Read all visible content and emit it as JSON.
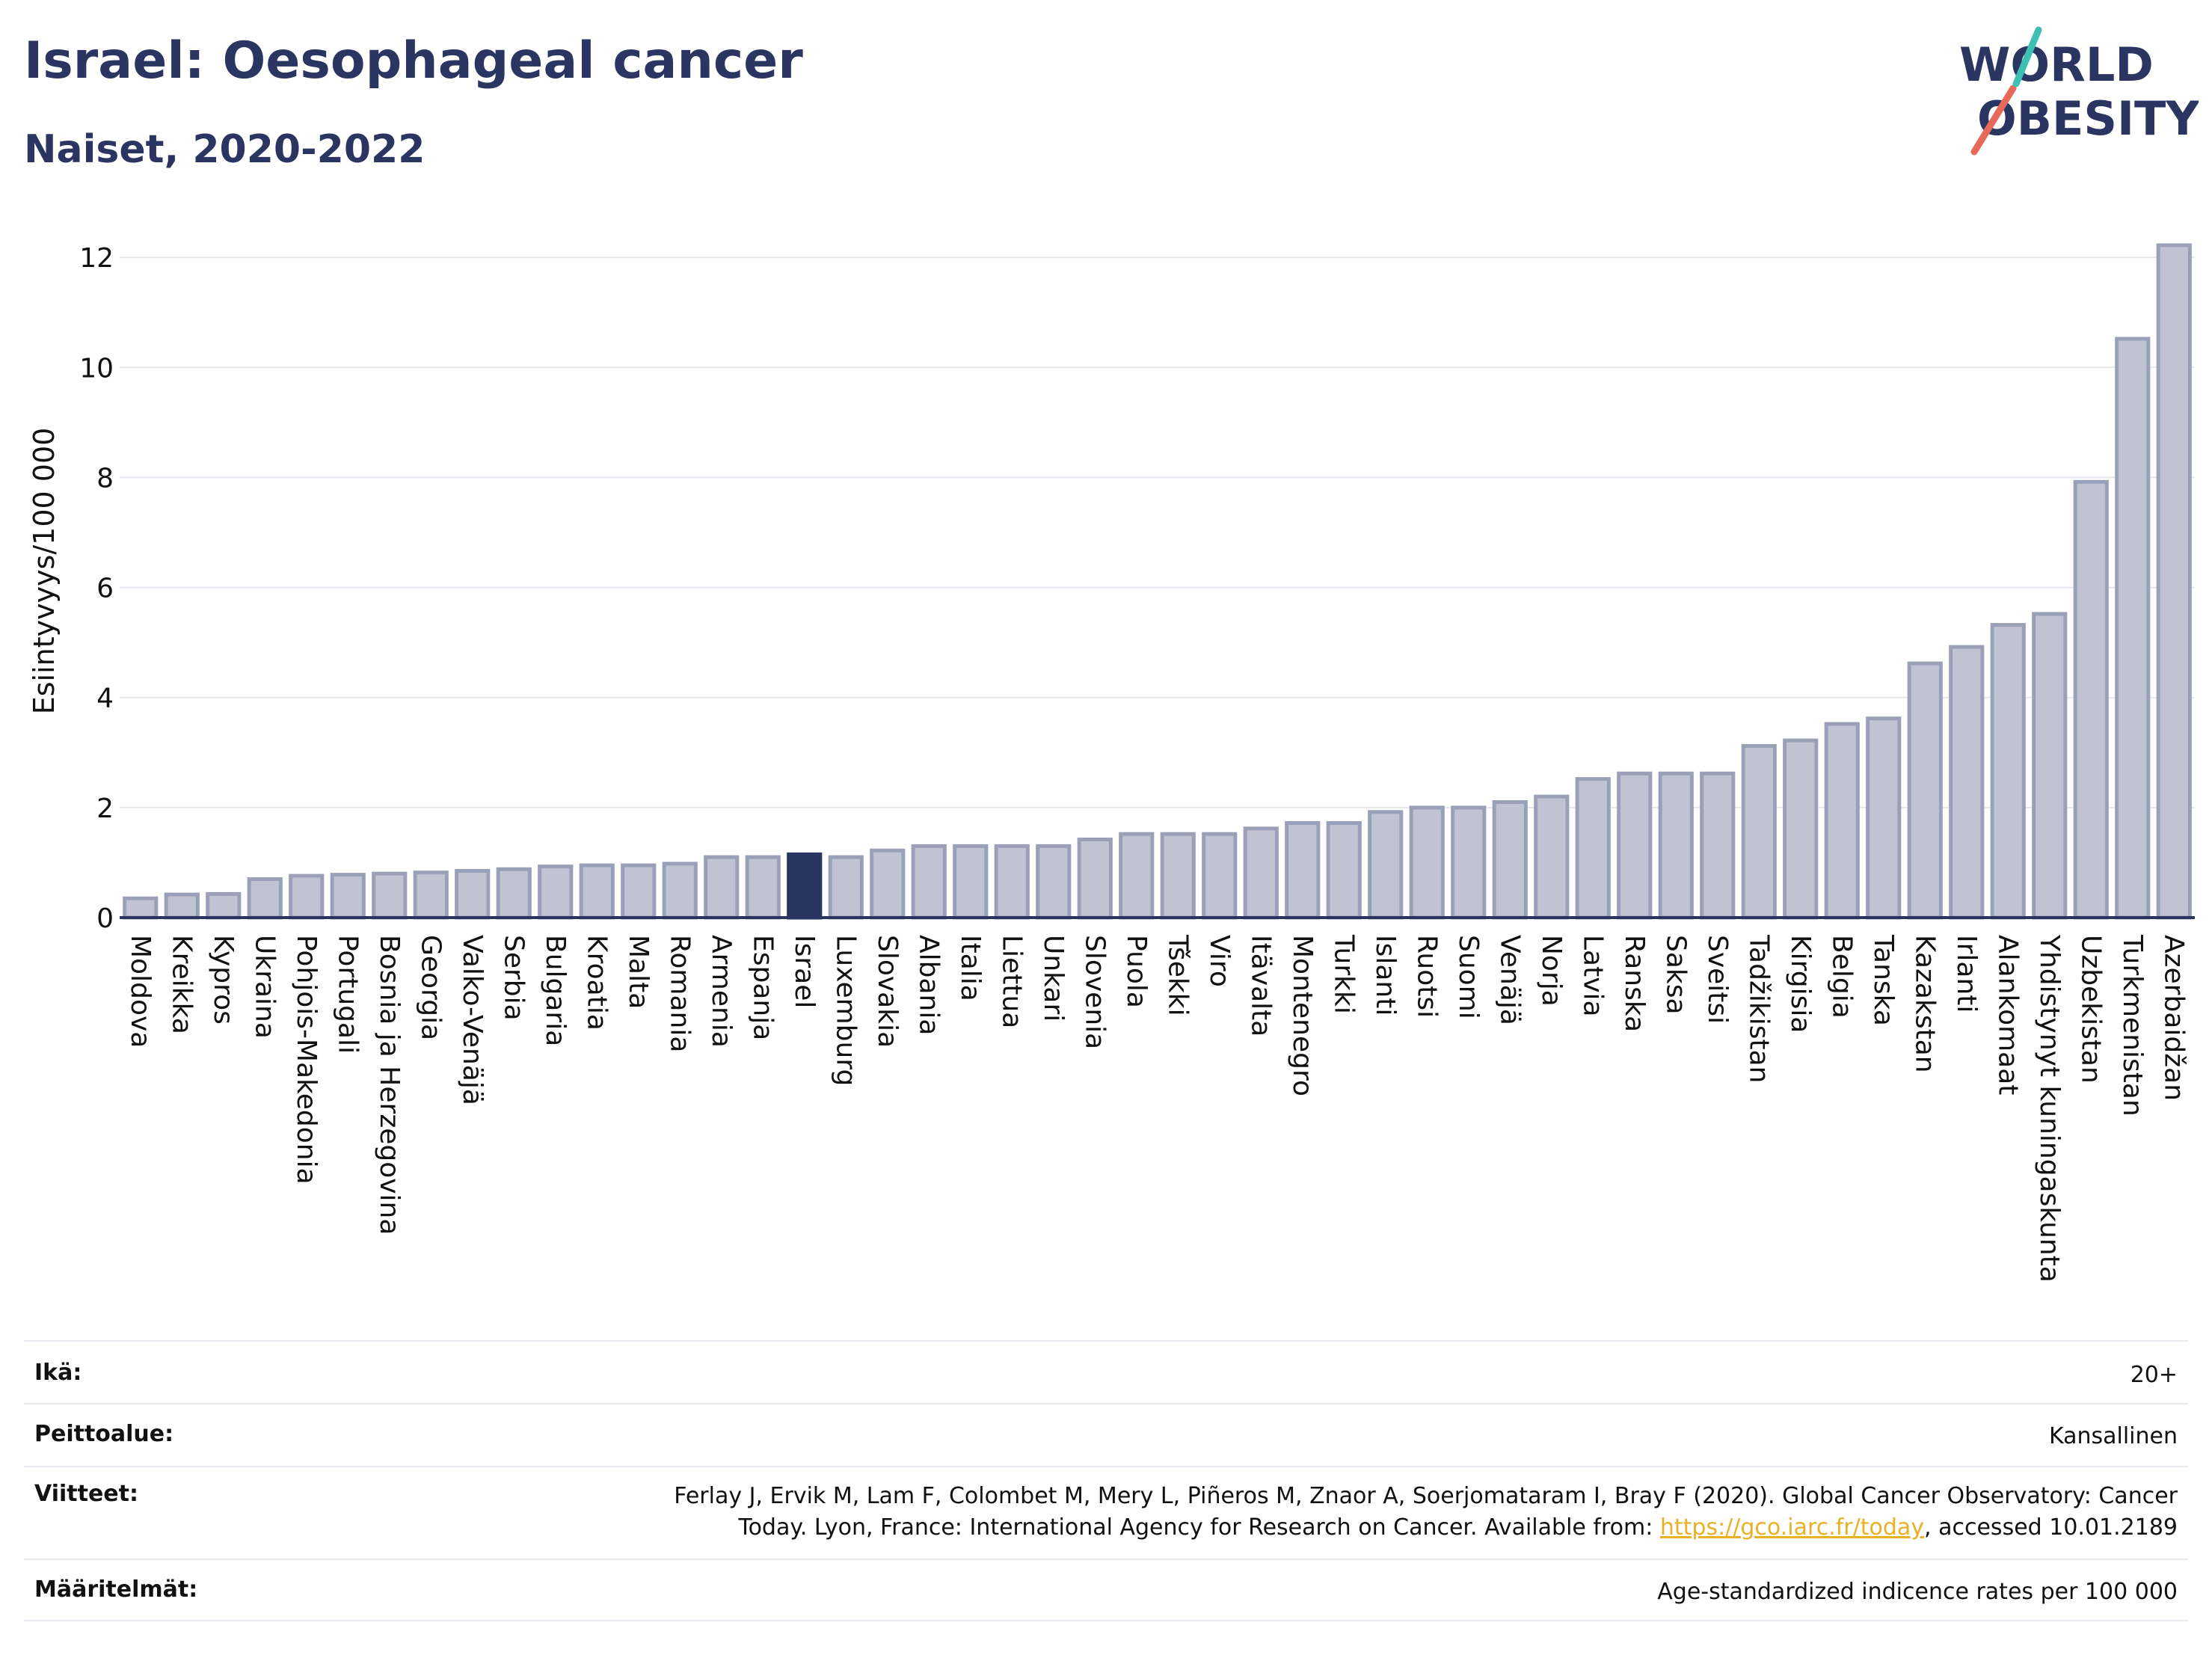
{
  "header": {
    "title": "Israel: Oesophageal cancer",
    "subtitle": "Naiset, 2020-2022"
  },
  "logo": {
    "line1": "WORLD",
    "line2": "OBESITY",
    "text_color": "#2a3561",
    "slash_colors": [
      "#e8685a",
      "#3dbfb4"
    ]
  },
  "colors": {
    "bar_fill": "#c0c4d2",
    "bar_stroke": "#9aa0b8",
    "highlight_fill": "#2a3561",
    "grid": "#e6e7ee",
    "axis": "#2a3561"
  },
  "chart_data": {
    "type": "bar",
    "ylabel": "Esiintyvyys/100 000",
    "ylim": [
      0,
      12.6
    ],
    "yticks": [
      0,
      2,
      4,
      6,
      8,
      10,
      12
    ],
    "grid": true,
    "highlight": "Israel",
    "categories": [
      "Moldova",
      "Kreikka",
      "Kypros",
      "Ukraina",
      "Pohjois-Makedonia",
      "Portugali",
      "Bosnia ja Herzegovina",
      "Georgia",
      "Valko-Venäjä",
      "Serbia",
      "Bulgaria",
      "Kroatia",
      "Malta",
      "Romania",
      "Armenia",
      "Espanja",
      "Israel",
      "Luxemburg",
      "Slovakia",
      "Albania",
      "Italia",
      "Liettua",
      "Unkari",
      "Slovenia",
      "Puola",
      "Tšekki",
      "Viro",
      "Itävalta",
      "Montenegro",
      "Turkki",
      "Islanti",
      "Ruotsi",
      "Suomi",
      "Venäjä",
      "Norja",
      "Latvia",
      "Ranska",
      "Saksa",
      "Sveitsi",
      "Tadžikistan",
      "Kirgisia",
      "Belgia",
      "Tanska",
      "Kazakstan",
      "Irlanti",
      "Alankomaat",
      "Yhdistynyt kuningaskunta",
      "Uzbekistan",
      "Turkmenistan",
      "Azerbaidžan"
    ],
    "values": [
      0.35,
      0.42,
      0.43,
      0.7,
      0.76,
      0.78,
      0.8,
      0.82,
      0.85,
      0.88,
      0.93,
      0.95,
      0.95,
      0.98,
      1.1,
      1.1,
      1.15,
      1.1,
      1.22,
      1.3,
      1.3,
      1.3,
      1.3,
      1.42,
      1.52,
      1.52,
      1.52,
      1.62,
      1.72,
      1.72,
      1.92,
      2.0,
      2.0,
      2.1,
      2.2,
      2.52,
      2.62,
      2.62,
      2.62,
      3.12,
      3.22,
      3.52,
      3.62,
      4.62,
      4.92,
      5.32,
      5.52,
      7.92,
      10.52,
      12.22
    ]
  },
  "meta": {
    "age_label": "Ikä:",
    "age_value": "20+",
    "coverage_label": "Peittoalue:",
    "coverage_value": "Kansallinen",
    "refs_label": "Viitteet:",
    "refs_line1": "Ferlay J, Ervik M, Lam F, Colombet M, Mery L, Piñeros M, Znaor A, Soerjomataram I, Bray F (2020). Global Cancer Observatory: Cancer",
    "refs_line2_pre": "Today. Lyon, France: International Agency for Research on Cancer. Available from: ",
    "refs_link": "https://gco.iarc.fr/today",
    "refs_line2_post": ", accessed 10.01.2189",
    "defs_label": "Määritelmät:",
    "defs_value": "Age-standardized indicence rates per 100 000"
  }
}
